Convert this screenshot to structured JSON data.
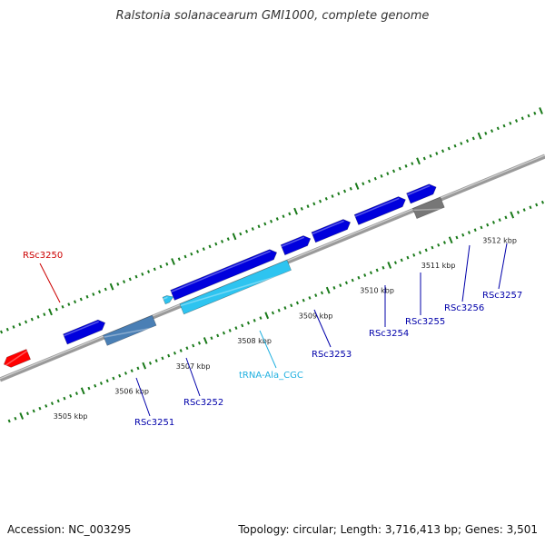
{
  "title": "Ralstonia solanacearum GMI1000, complete genome",
  "footer": {
    "accession": "Accession: NC_003295",
    "info": "Topology: circular; Length: 3,716,413 bp; Genes: 3,501"
  },
  "colors": {
    "backbone": "#8c8c8c",
    "ticks": "#1a7a1a",
    "reverse_gene": "#ff0000",
    "forward_gene": "#0000dd",
    "trna": "#2ec4f0",
    "gene_alt": "#4a7fb5",
    "gray_gene": "#777777",
    "label_red": "#cc0000",
    "label_blue": "#0000aa",
    "label_cyan": "#20b0e0"
  },
  "scale_labels": [
    {
      "pos": 3505,
      "text": "3505 kbp"
    },
    {
      "pos": 3506,
      "text": "3506 kbp"
    },
    {
      "pos": 3507,
      "text": "3507 kbp"
    },
    {
      "pos": 3508,
      "text": "3508 kbp"
    },
    {
      "pos": 3509,
      "text": "3509 kbp"
    },
    {
      "pos": 3510,
      "text": "3510 kbp"
    },
    {
      "pos": 3511,
      "text": "3511 kbp"
    },
    {
      "pos": 3512,
      "text": "3512 kbp"
    }
  ],
  "features": [
    {
      "name": "RSc3250",
      "strand": "reverse",
      "color": "red",
      "start": 3504.55,
      "end": 3504.95,
      "label": "RSc3250"
    },
    {
      "name": "RSc3251",
      "strand": "forward",
      "color": "blue",
      "start": 3505.55,
      "end": 3506.2,
      "label": "RSc3251"
    },
    {
      "name": "RSc3252",
      "strand": "complement-track",
      "color": "steel",
      "start": 3506.1,
      "end": 3506.9,
      "label": "RSc3252"
    },
    {
      "name": "tRNA-Ala_CGC",
      "strand": "trna",
      "color": "cyan",
      "start": 3507.15,
      "end": 3507.3,
      "label": "tRNA-Ala_CGC"
    },
    {
      "name": "RSc3253",
      "strand": "forward",
      "color": "blue",
      "start": 3507.3,
      "end": 3509.0,
      "label": "RSc3253"
    },
    {
      "name": "RSc3253-b",
      "strand": "complement-track",
      "color": "cyan",
      "start": 3507.35,
      "end": 3509.1,
      "label": ""
    },
    {
      "name": "RSc3254",
      "strand": "forward",
      "color": "blue",
      "start": 3509.1,
      "end": 3509.55,
      "label": "RSc3254"
    },
    {
      "name": "RSc3255",
      "strand": "forward",
      "color": "blue",
      "start": 3509.6,
      "end": 3510.2,
      "label": "RSc3255"
    },
    {
      "name": "RSc3256",
      "strand": "forward",
      "color": "blue",
      "start": 3510.3,
      "end": 3511.1,
      "label": "RSc3256"
    },
    {
      "name": "RSc3257",
      "strand": "forward",
      "color": "blue",
      "start": 3511.15,
      "end": 3511.6,
      "label": "RSc3257"
    },
    {
      "name": "RSc3257-gray",
      "strand": "complement-track",
      "color": "gray",
      "start": 3511.15,
      "end": 3511.6,
      "label": ""
    }
  ]
}
